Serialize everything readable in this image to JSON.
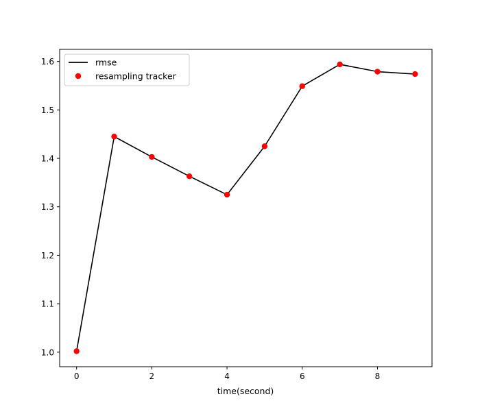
{
  "chart_data": {
    "type": "line",
    "title": "",
    "xlabel": "time(second)",
    "ylabel": "",
    "xlim": [
      -0.45,
      9.45
    ],
    "ylim": [
      0.97,
      1.625
    ],
    "x": [
      0,
      1,
      2,
      3,
      4,
      5,
      6,
      7,
      8,
      9
    ],
    "xticks": [
      0,
      2,
      4,
      6,
      8
    ],
    "xtick_labels": [
      "0",
      "2",
      "4",
      "6",
      "8"
    ],
    "yticks": [
      1.0,
      1.1,
      1.2,
      1.3,
      1.4,
      1.5,
      1.6
    ],
    "ytick_labels": [
      "1.0",
      "1.1",
      "1.2",
      "1.3",
      "1.4",
      "1.5",
      "1.6"
    ],
    "series": [
      {
        "name": "rmse",
        "kind": "line",
        "color": "#000000",
        "values": [
          1.002,
          1.445,
          1.403,
          1.363,
          1.325,
          1.425,
          1.549,
          1.594,
          1.579,
          1.574
        ]
      },
      {
        "name": "resampling tracker",
        "kind": "scatter",
        "color": "#ff0000",
        "values": [
          1.002,
          1.445,
          1.403,
          1.363,
          1.325,
          1.425,
          1.549,
          1.594,
          1.579,
          1.574
        ]
      }
    ],
    "legend": {
      "position": "top-left",
      "entries": [
        "rmse",
        "resampling tracker"
      ]
    },
    "grid": false
  }
}
